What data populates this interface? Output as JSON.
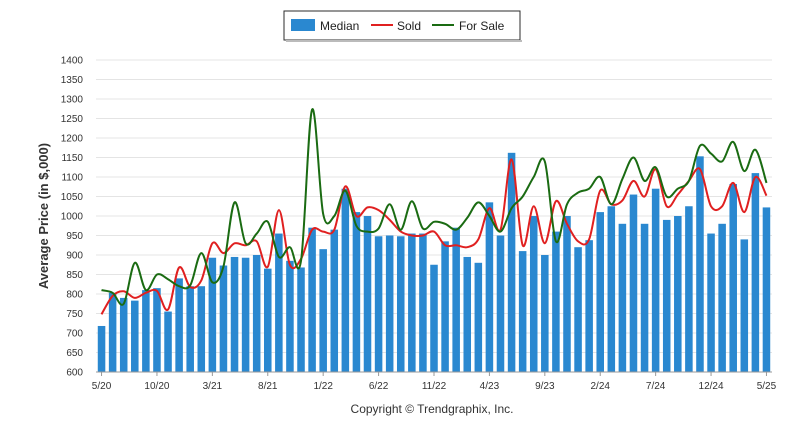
{
  "chart_data": {
    "type": "bar",
    "ylabel": "Average Price (in $,000)",
    "ylim": [
      600,
      1400
    ],
    "ytick_step": 50,
    "x_tick_labels": [
      "5/20",
      "10/20",
      "3/21",
      "8/21",
      "1/22",
      "6/22",
      "11/22",
      "4/23",
      "9/23",
      "2/24",
      "7/24",
      "12/24",
      "5/25"
    ],
    "x_tick_every": 5,
    "grid": true,
    "legend_position": "top-center",
    "series": [
      {
        "name": "Median",
        "kind": "bar",
        "color": "#2a88d0",
        "values": [
          718,
          803,
          790,
          783,
          810,
          815,
          755,
          840,
          820,
          820,
          893,
          873,
          895,
          893,
          900,
          865,
          955,
          885,
          868,
          970,
          915,
          965,
          1070,
          1010,
          1000,
          948,
          950,
          948,
          955,
          955,
          875,
          935,
          970,
          895,
          880,
          1035,
          950,
          1162,
          910,
          1000,
          900,
          960,
          1000,
          920,
          938,
          1010,
          1025,
          980,
          1055,
          980,
          1070,
          990,
          1000,
          1025,
          1153,
          955,
          980,
          1082,
          940,
          1110,
          1022
        ]
      },
      {
        "name": "Sold",
        "kind": "line",
        "color": "#e02020",
        "values": [
          748,
          795,
          807,
          790,
          803,
          808,
          760,
          868,
          818,
          835,
          930,
          905,
          930,
          925,
          935,
          870,
          1015,
          875,
          890,
          965,
          960,
          965,
          1076,
          1000,
          1022,
          1015,
          990,
          960,
          950,
          950,
          960,
          925,
          925,
          920,
          940,
          1020,
          965,
          1145,
          925,
          1025,
          930,
          1038,
          980,
          935,
          940,
          1065,
          1030,
          1040,
          1090,
          1050,
          1120,
          1025,
          1055,
          1090,
          1120,
          1025,
          1025,
          1085,
          1010,
          1100,
          1052
        ]
      },
      {
        "name": "For Sale",
        "kind": "line",
        "color": "#1a6b12",
        "values": [
          810,
          803,
          775,
          880,
          810,
          850,
          838,
          820,
          822,
          905,
          830,
          870,
          1035,
          930,
          955,
          985,
          895,
          920,
          885,
          1273,
          1005,
          1000,
          1065,
          975,
          960,
          968,
          1030,
          965,
          1038,
          968,
          985,
          980,
          965,
          995,
          1035,
          1000,
          960,
          1020,
          1050,
          1100,
          1140,
          935,
          1030,
          1060,
          1070,
          1100,
          1030,
          1095,
          1150,
          1090,
          1125,
          1050,
          1070,
          1090,
          1180,
          1160,
          1140,
          1190,
          1115,
          1170,
          1085
        ]
      }
    ]
  },
  "footer": {
    "copyright": "Copyright © Trendgraphix, Inc."
  }
}
